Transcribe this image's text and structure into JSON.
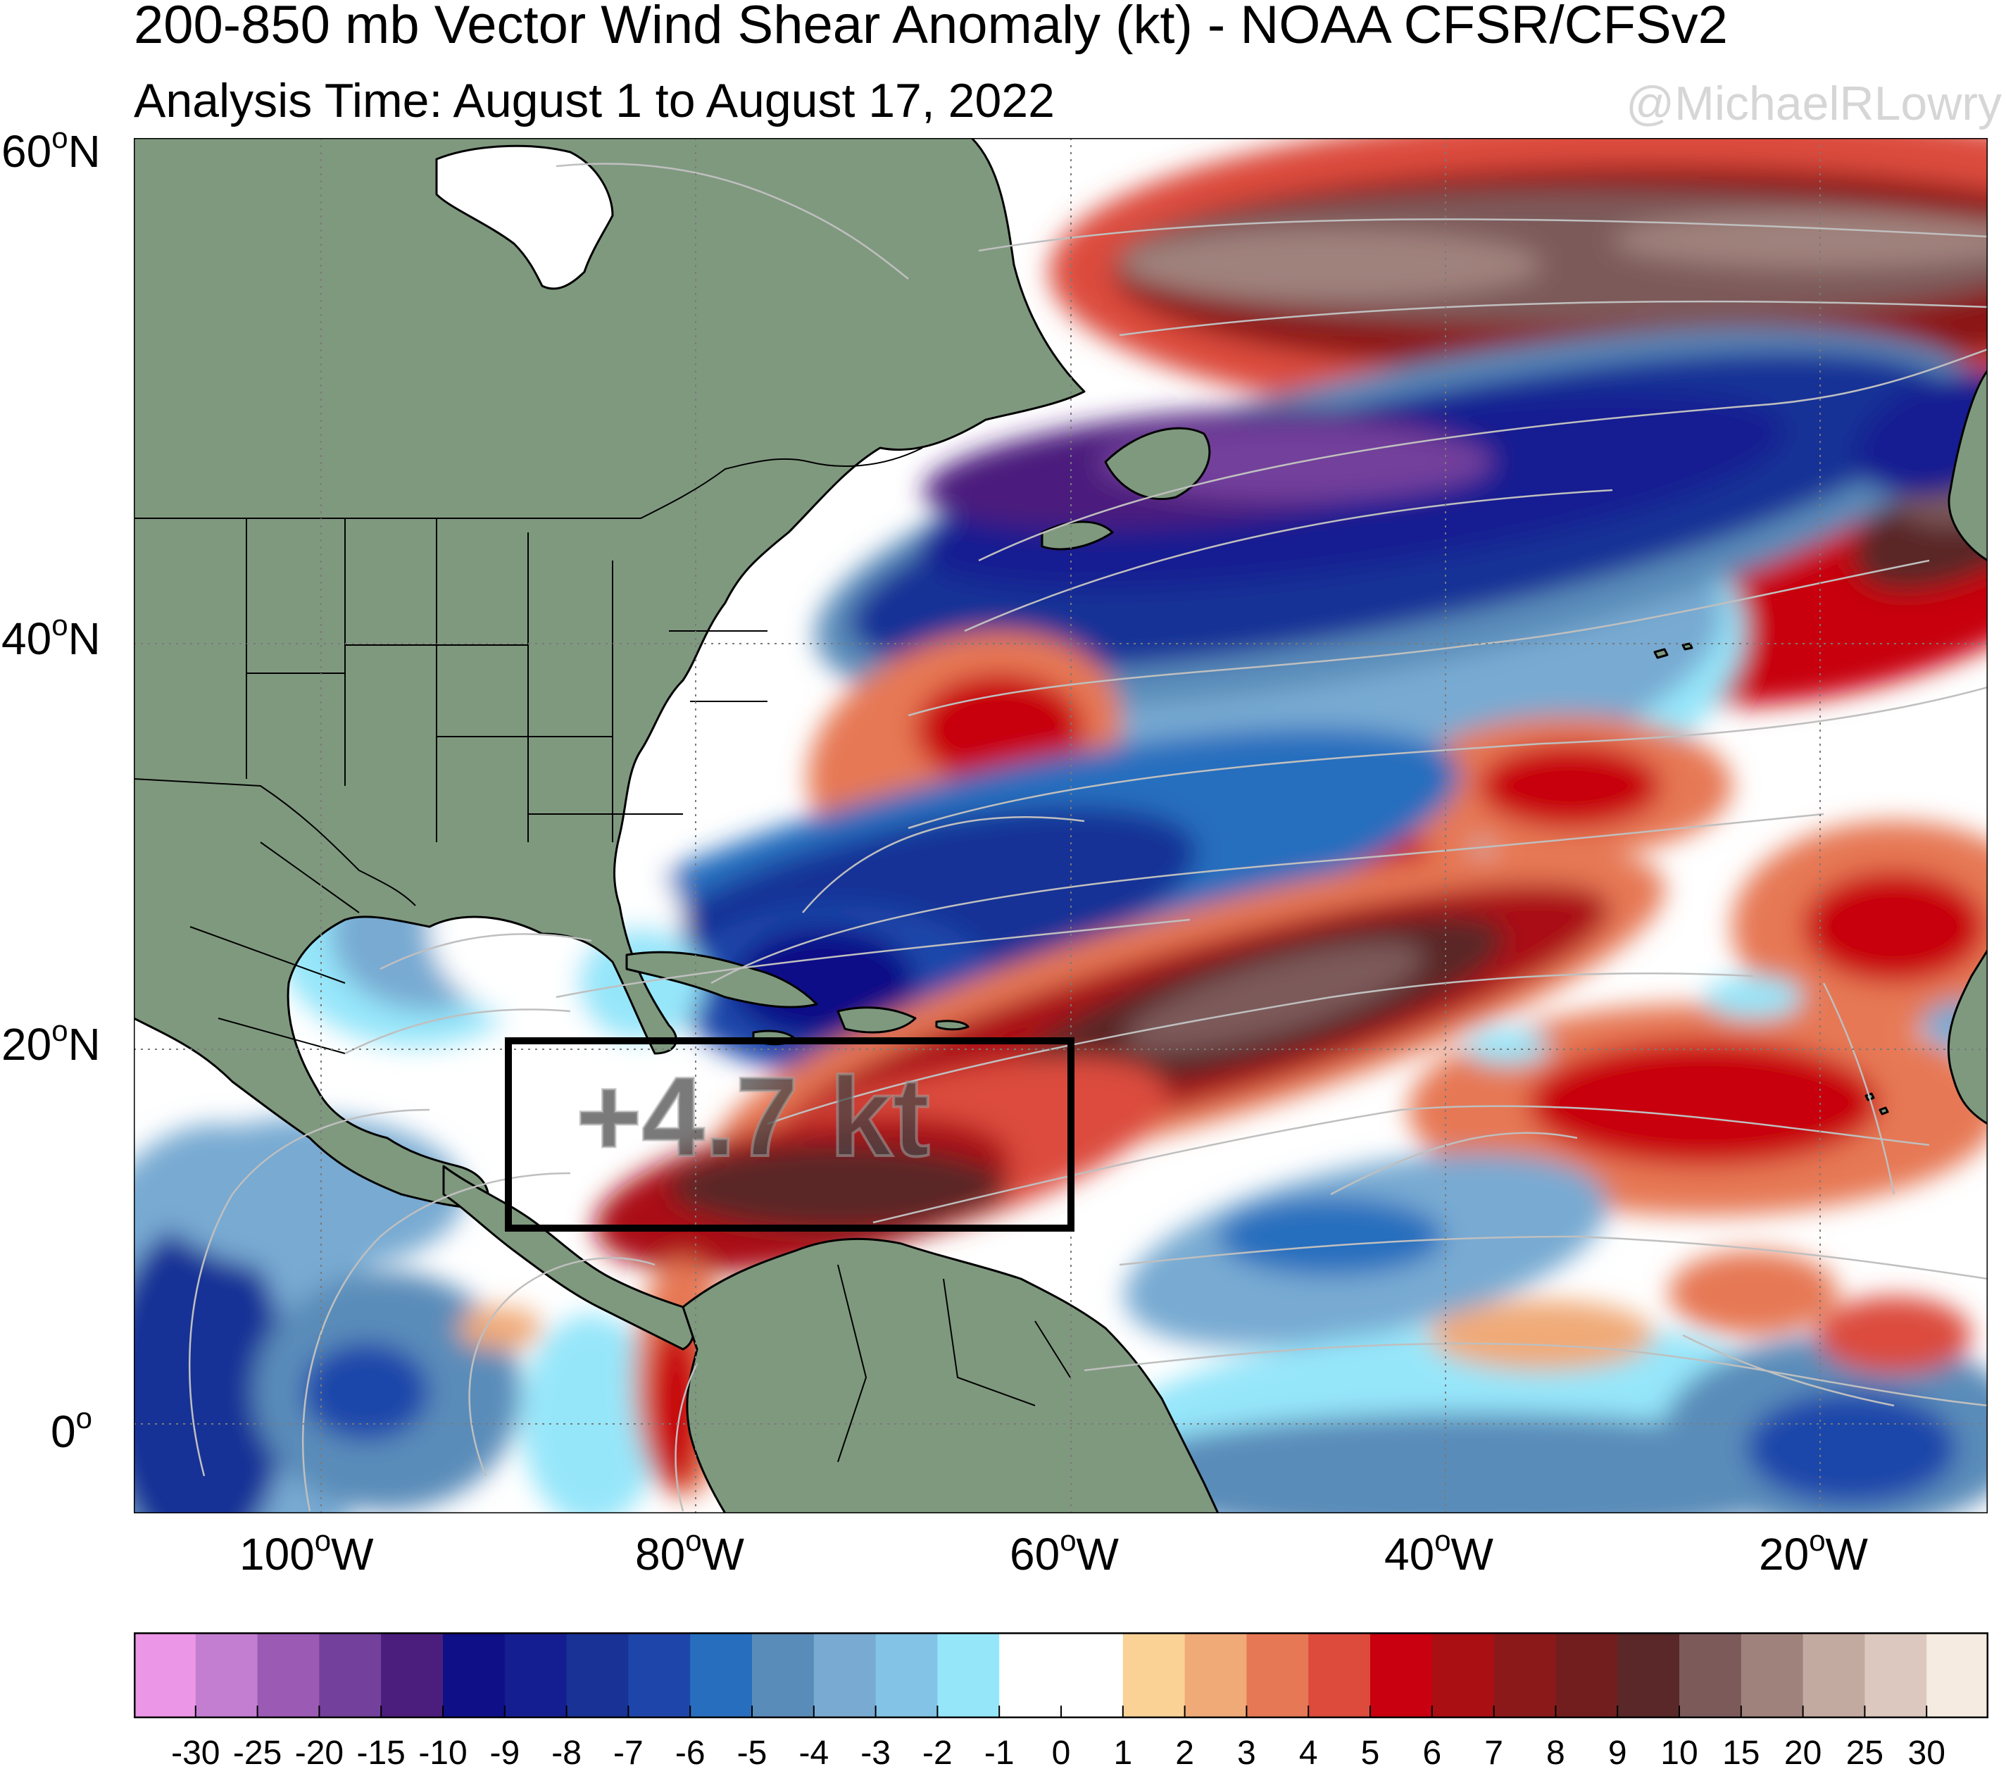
{
  "title": "200-850 mb Vector Wind Shear Anomaly (kt) - NOAA CFSR/CFSv2",
  "subtitle": "Analysis Time: August 1 to August 17, 2022",
  "credit": "@MichaelRLowry",
  "box_label": "+4.7 kt",
  "lat_labels": [
    {
      "value": "60",
      "sup": "o",
      "hemi": "N"
    },
    {
      "value": "40",
      "sup": "o",
      "hemi": "N"
    },
    {
      "value": "20",
      "sup": "o",
      "hemi": "N"
    },
    {
      "value": "0",
      "sup": "o",
      "hemi": ""
    }
  ],
  "lon_labels": [
    {
      "value": "100",
      "sup": "o",
      "hemi": "W"
    },
    {
      "value": "80",
      "sup": "o",
      "hemi": "W"
    },
    {
      "value": "60",
      "sup": "o",
      "hemi": "W"
    },
    {
      "value": "40",
      "sup": "o",
      "hemi": "W"
    },
    {
      "value": "20",
      "sup": "o",
      "hemi": "W"
    }
  ],
  "map": {
    "lon_range": [
      -110,
      -12
    ],
    "lat_range": [
      -4.5,
      60
    ],
    "highlight_box": {
      "lon": [
        -90,
        -60
      ],
      "lat": [
        10,
        20
      ]
    },
    "land_color": "#7f997f"
  },
  "colorbar": {
    "tick_labels": [
      "-30",
      "-25",
      "-20",
      "-15",
      "-10",
      "-9",
      "-8",
      "-7",
      "-6",
      "-5",
      "-4",
      "-3",
      "-2",
      "-1",
      "0",
      "1",
      "2",
      "3",
      "4",
      "5",
      "6",
      "7",
      "8",
      "9",
      "10",
      "15",
      "20",
      "25",
      "30"
    ],
    "colors": [
      "#eb96e6",
      "#c37ed2",
      "#9b5ab4",
      "#73419b",
      "#4b1e7d",
      "#0f0f87",
      "#141e91",
      "#193296",
      "#1e46aa",
      "#286ebe",
      "#5a8cb9",
      "#78aad2",
      "#82c3e6",
      "#96e6fa",
      "#ffffff",
      "#ffffff",
      "#fad296",
      "#f0aa78",
      "#e67855",
      "#dc4b3c",
      "#c8000f",
      "#aa0f14",
      "#8c1919",
      "#731e1e",
      "#5a2828",
      "#7d5a5a",
      "#a0827d",
      "#c3aaa0",
      "#dcc8be",
      "#f5ebe1"
    ]
  }
}
